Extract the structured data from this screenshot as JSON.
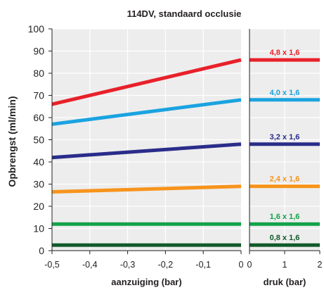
{
  "chart_data": {
    "type": "line",
    "title": "114DV, standaard occlusie",
    "ylabel": "Opbrengst (ml/min)",
    "ylim": [
      0,
      100
    ],
    "yticks": [
      "0",
      "10",
      "20",
      "30",
      "40",
      "50",
      "60",
      "70",
      "80",
      "90",
      "100"
    ],
    "grid": true,
    "panels": [
      {
        "xlabel": "aanzuiging (bar)",
        "xlim": [
          -0.5,
          0
        ],
        "xticks": [
          "-0,5",
          "-0,4",
          "-0,3",
          "-0,2",
          "-0,1",
          "0"
        ],
        "series": [
          {
            "name": "4,8 x 1,6",
            "x": [
              -0.5,
              0
            ],
            "y": [
              66,
              86
            ]
          },
          {
            "name": "4,0 x 1,6",
            "x": [
              -0.5,
              0
            ],
            "y": [
              57,
              68
            ]
          },
          {
            "name": "3,2 x 1,6",
            "x": [
              -0.5,
              0
            ],
            "y": [
              42,
              48
            ]
          },
          {
            "name": "2,4 x 1,6",
            "x": [
              -0.5,
              0
            ],
            "y": [
              26.5,
              29
            ]
          },
          {
            "name": "1,6 x 1,6",
            "x": [
              -0.5,
              0
            ],
            "y": [
              12,
              12
            ]
          },
          {
            "name": "0,8 x 1,6",
            "x": [
              -0.5,
              0
            ],
            "y": [
              2.5,
              2.5
            ]
          }
        ]
      },
      {
        "xlabel": "druk (bar)",
        "xlim": [
          0,
          2
        ],
        "xticks": [
          "0",
          "1",
          "2"
        ],
        "series": [
          {
            "name": "4,8 x 1,6",
            "x": [
              0,
              2
            ],
            "y": [
              86,
              86
            ]
          },
          {
            "name": "4,0 x 1,6",
            "x": [
              0,
              2
            ],
            "y": [
              68,
              68
            ]
          },
          {
            "name": "3,2 x 1,6",
            "x": [
              0,
              2
            ],
            "y": [
              48,
              48
            ]
          },
          {
            "name": "2,4 x 1,6",
            "x": [
              0,
              2
            ],
            "y": [
              29,
              29
            ]
          },
          {
            "name": "1,6 x 1,6",
            "x": [
              0,
              2
            ],
            "y": [
              12,
              12
            ]
          },
          {
            "name": "0,8 x 1,6",
            "x": [
              0,
              2
            ],
            "y": [
              2.5,
              2.5
            ]
          }
        ]
      }
    ],
    "series_colors": {
      "4,8 x 1,6": "#e8212a",
      "4,0 x 1,6": "#1aa3e0",
      "3,2 x 1,6": "#2a2c8a",
      "2,4 x 1,6": "#f7941d",
      "1,6 x 1,6": "#12a24a",
      "0,8 x 1,6": "#0f5a2a"
    },
    "panel_background": "#ededed",
    "gridline_color": "#ffffff"
  }
}
